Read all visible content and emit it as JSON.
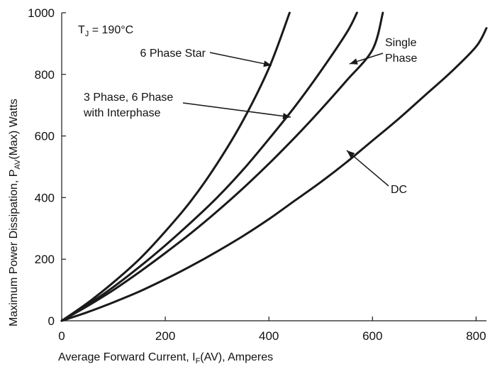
{
  "chart_data": {
    "type": "line",
    "x_axis": {
      "label_main": "Average Forward Current, I",
      "label_sub": "F",
      "label_tail": "(AV), Amperes",
      "range": [
        0,
        820
      ],
      "ticks": [
        0,
        200,
        400,
        600,
        800
      ],
      "tick_labels": [
        "0",
        "200",
        "400",
        "600",
        "800"
      ]
    },
    "y_axis": {
      "label_main": "Maximum Power Dissipation, P",
      "label_sub": "AV",
      "label_tail": "(Max) Watts",
      "range": [
        0,
        1000
      ],
      "ticks": [
        0,
        200,
        400,
        600,
        800,
        1000
      ],
      "tick_labels": [
        "0",
        "200",
        "400",
        "600",
        "800",
        "1000"
      ]
    },
    "condition": {
      "main": "T",
      "sub": "J",
      "tail": " = 190°C"
    },
    "grid": false,
    "series": [
      {
        "name": "6 Phase Star",
        "x": [
          0,
          50,
          100,
          150,
          200,
          250,
          300,
          350,
          400,
          440
        ],
        "y": [
          0,
          58,
          125,
          200,
          290,
          390,
          510,
          650,
          820,
          1000
        ]
      },
      {
        "name": "3 Phase, 6 Phase with Interphase",
        "x": [
          0,
          50,
          100,
          150,
          200,
          250,
          300,
          350,
          400,
          450,
          500,
          550,
          570
        ],
        "y": [
          0,
          52,
          110,
          175,
          245,
          320,
          400,
          490,
          590,
          695,
          810,
          935,
          1000
        ]
      },
      {
        "name": "Single Phase",
        "x": [
          0,
          50,
          100,
          150,
          200,
          250,
          300,
          350,
          400,
          450,
          500,
          550,
          600,
          620
        ],
        "y": [
          0,
          48,
          100,
          158,
          220,
          285,
          355,
          430,
          510,
          595,
          685,
          780,
          880,
          1000
        ]
      },
      {
        "name": "DC",
        "x": [
          0,
          50,
          100,
          150,
          200,
          250,
          300,
          350,
          400,
          450,
          500,
          550,
          600,
          650,
          700,
          750,
          800,
          820
        ],
        "y": [
          0,
          28,
          60,
          95,
          135,
          178,
          225,
          275,
          330,
          390,
          450,
          515,
          585,
          655,
          730,
          805,
          890,
          950
        ]
      }
    ],
    "labels": [
      {
        "series": 0,
        "lines": [
          "6 Phase Star"
        ],
        "align": "end"
      },
      {
        "series": 1,
        "lines": [
          "3 Phase, 6 Phase",
          "with Interphase"
        ],
        "align": "start"
      },
      {
        "series": 2,
        "lines": [
          "Single",
          "Phase"
        ],
        "align": "start"
      },
      {
        "series": 3,
        "lines": [
          "DC"
        ],
        "align": "start"
      }
    ]
  }
}
